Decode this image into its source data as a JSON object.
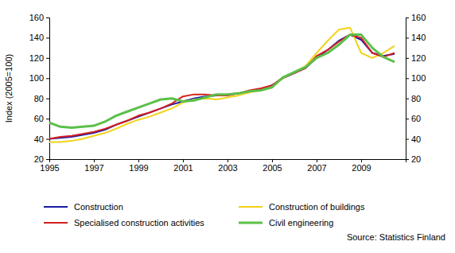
{
  "chart_data": {
    "type": "line",
    "y_label": "Index (2005=100)",
    "source": "Source: Statistics Finland",
    "x": [
      1995,
      1995.5,
      1996,
      1996.5,
      1997,
      1997.5,
      1998,
      1998.5,
      1999,
      1999.5,
      2000,
      2000.5,
      2001,
      2001.5,
      2002,
      2002.5,
      2003,
      2003.5,
      2004,
      2004.5,
      2005,
      2005.5,
      2006,
      2006.5,
      2007,
      2007.5,
      2008,
      2008.5,
      2009,
      2009.5,
      2010,
      2010.5
    ],
    "series": [
      {
        "name": "Construction",
        "color": "#1a1aa6",
        "values": [
          40,
          41,
          42,
          44,
          46,
          49,
          54,
          58,
          62,
          66,
          70,
          74,
          77,
          80,
          82,
          83,
          84,
          85,
          87,
          89,
          93,
          100,
          105,
          110,
          120,
          128,
          137,
          143,
          138,
          125,
          122,
          124
        ]
      },
      {
        "name": "Construction of buildings",
        "color": "#f2d21b",
        "values": [
          37,
          37,
          38,
          40,
          43,
          46,
          50,
          55,
          59,
          62,
          66,
          70,
          76,
          79,
          80,
          79,
          81,
          83,
          86,
          88,
          92,
          100,
          106,
          112,
          125,
          137,
          148,
          150,
          125,
          120,
          125,
          132
        ]
      },
      {
        "name": "Specialised construction activities",
        "color": "#d42020",
        "values": [
          40,
          42,
          43,
          45,
          47,
          50,
          54,
          58,
          63,
          66,
          70,
          75,
          82,
          84,
          84,
          83,
          83,
          85,
          88,
          90,
          93,
          101,
          105,
          110,
          122,
          128,
          136,
          143,
          140,
          125,
          121,
          125
        ]
      },
      {
        "name": "Civil engineering",
        "color": "#5cbf4a",
        "values": [
          56,
          52,
          51,
          52,
          53,
          57,
          63,
          67,
          71,
          75,
          79,
          80,
          77,
          78,
          81,
          84,
          84,
          85,
          87,
          88,
          91,
          101,
          106,
          111,
          120,
          125,
          133,
          143,
          143,
          130,
          121,
          116
        ]
      }
    ],
    "xlim": [
      1995,
      2011
    ],
    "xticks": [
      1995,
      1997,
      1999,
      2001,
      2003,
      2005,
      2007,
      2009
    ],
    "ylim": [
      20,
      160
    ],
    "yticks": [
      20,
      40,
      60,
      80,
      100,
      120,
      140,
      160
    ],
    "y2lim": [
      20,
      160
    ],
    "y2ticks": [
      20,
      40,
      60,
      80,
      100,
      120,
      140,
      160
    ],
    "grid": false,
    "legend": "bottom"
  }
}
